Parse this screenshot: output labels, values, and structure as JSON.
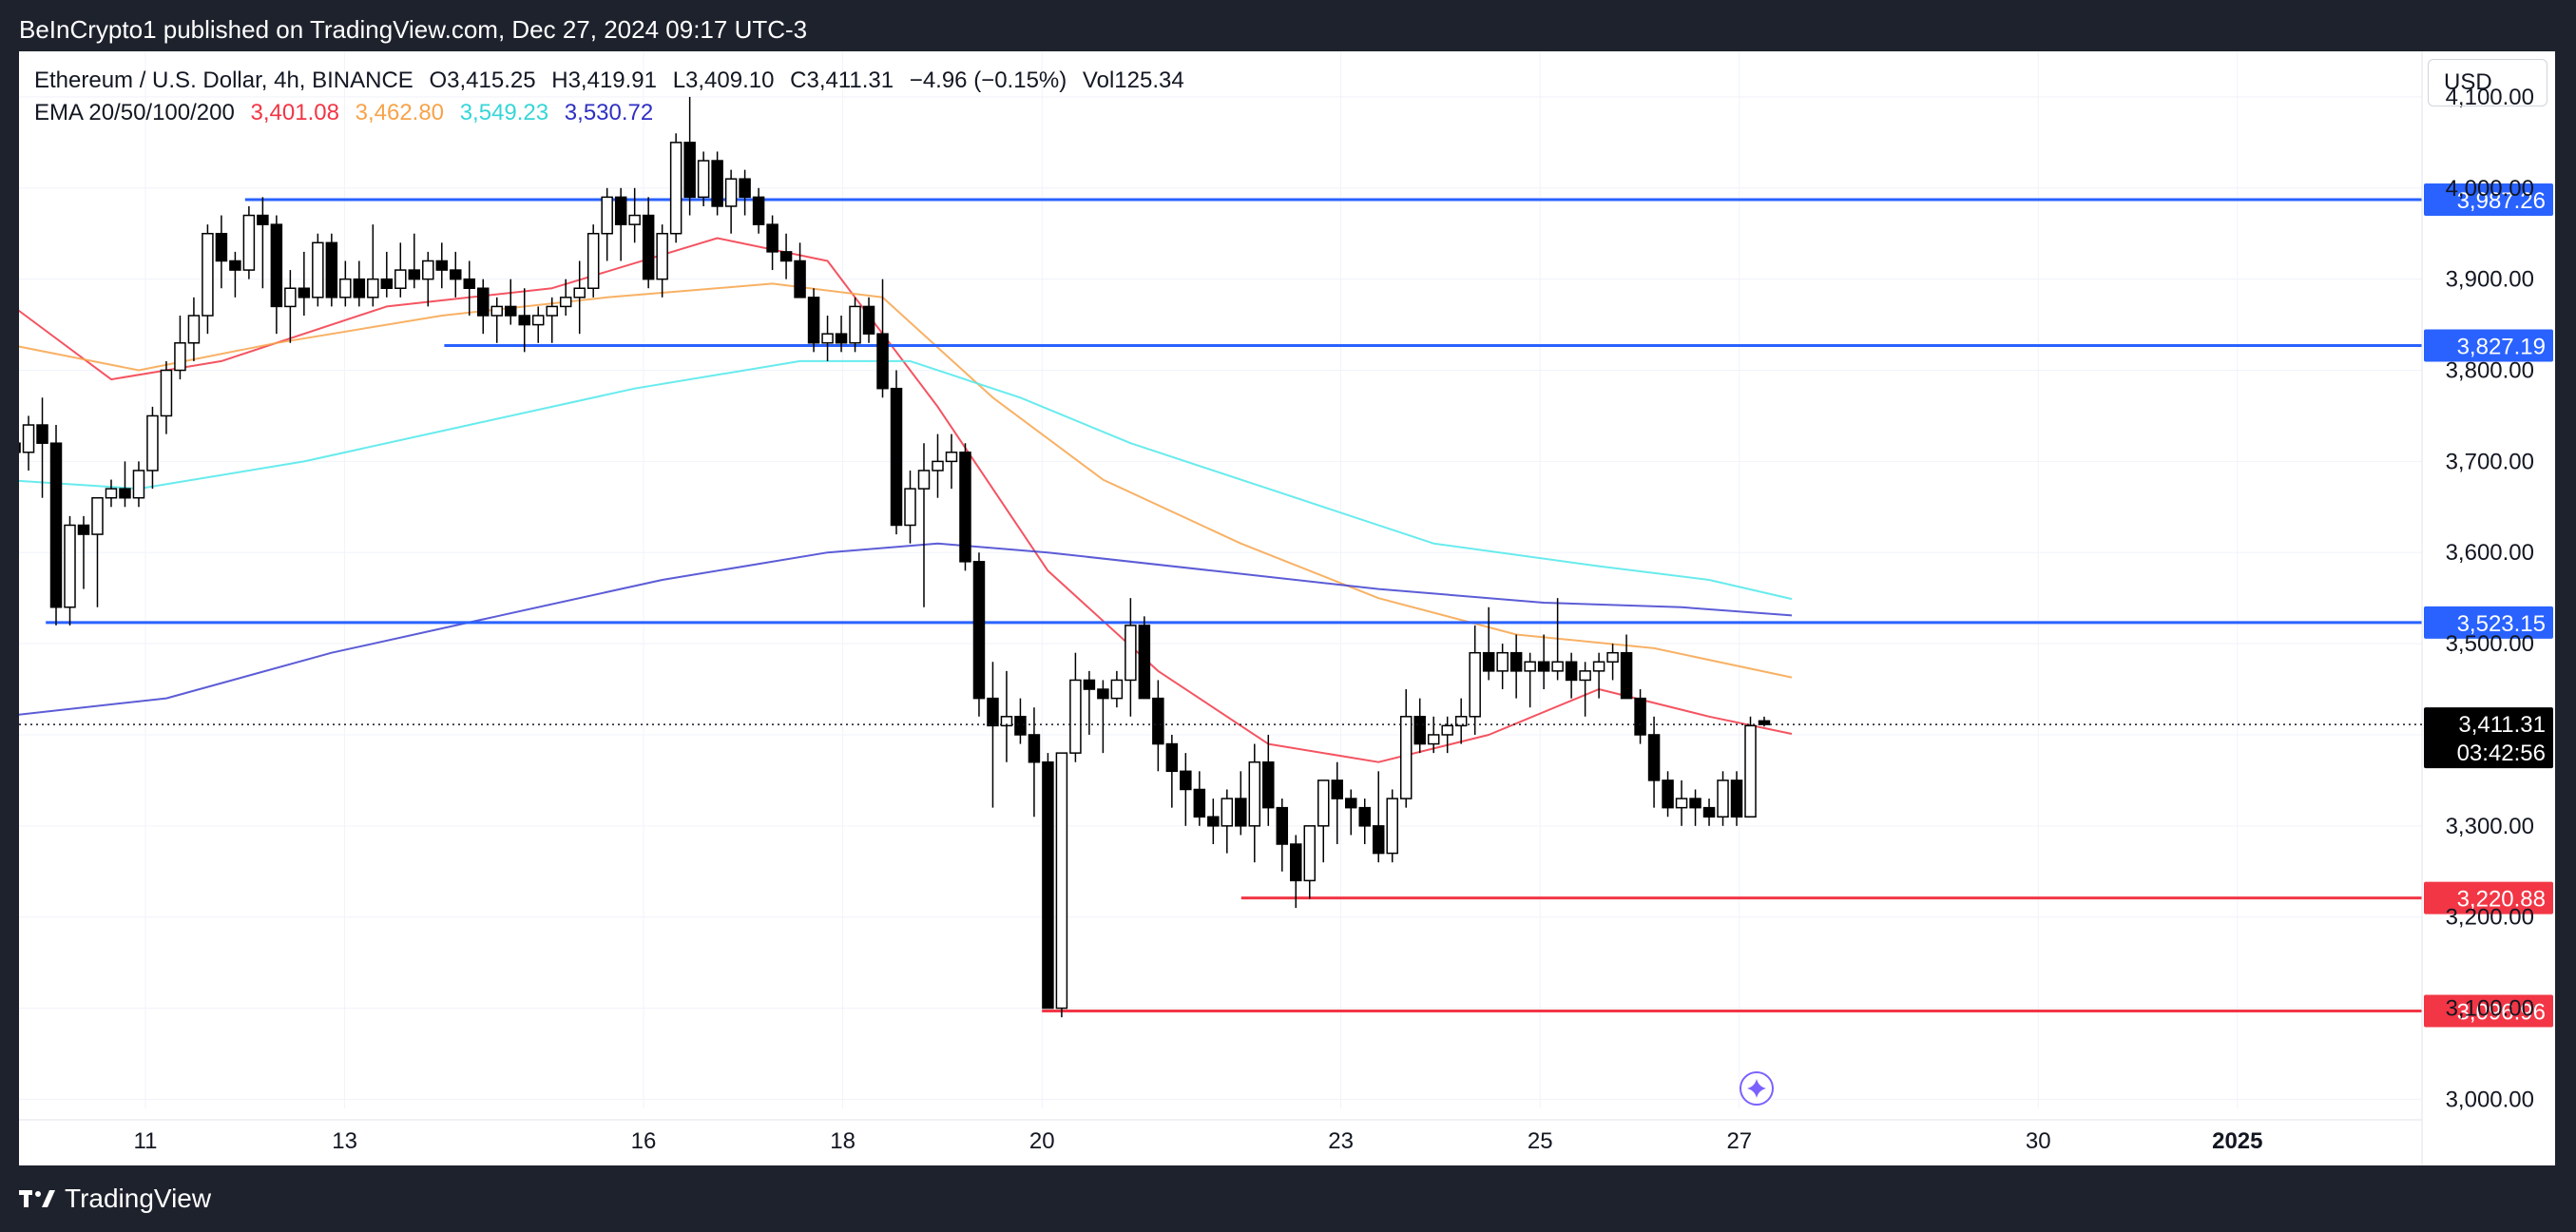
{
  "header": {
    "publisher": "BeInCrypto1 published on TradingView.com, Dec 27, 2024 09:17 UTC-3"
  },
  "footer": {
    "brand": "TradingView"
  },
  "legend": {
    "symbol_line": "Ethereum / U.S. Dollar, 4h, BINANCE",
    "open": "O3,415.25",
    "high": "H3,419.91",
    "low": "L3,409.10",
    "close": "C3,411.31",
    "change": "−4.96 (−0.15%)",
    "volume": "Vol125.34",
    "ema_label": "EMA 20/50/100/200",
    "ema20_value": "3,401.08",
    "ema50_value": "3,462.80",
    "ema100_value": "3,549.23",
    "ema200_value": "3,530.72"
  },
  "currency_button": "USD",
  "price_box": {
    "price": "3,411.31",
    "countdown": "03:42:56"
  },
  "colors": {
    "ema20": "#f23645",
    "ema50": "#f7a34a",
    "ema100": "#4de8ea",
    "ema200": "#3f3fd0",
    "resistance": "#2962ff",
    "support": "#f23645",
    "candle_up": "#ffffff",
    "candle_down": "#000000"
  },
  "chart_data": {
    "type": "candlestick",
    "symbol": "ETHUSD",
    "interval": "4h",
    "y_range": [
      2990,
      4150
    ],
    "x_range_days": [
      "Dec 9",
      "Jan 2"
    ],
    "y_ticks": [
      "3,000.00",
      "3,100.00",
      "3,200.00",
      "3,300.00",
      "3,400.00",
      "3,500.00",
      "3,600.00",
      "3,700.00",
      "3,800.00",
      "3,900.00",
      "4,000.00",
      "4,100.00"
    ],
    "y_tick_values": [
      3000,
      3100,
      3200,
      3300,
      3400,
      3500,
      3600,
      3700,
      3800,
      3900,
      4000,
      4100
    ],
    "x_ticks": [
      {
        "label": "11",
        "date": "2024-12-11"
      },
      {
        "label": "13",
        "date": "2024-12-13"
      },
      {
        "label": "16",
        "date": "2024-12-16"
      },
      {
        "label": "18",
        "date": "2024-12-18"
      },
      {
        "label": "20",
        "date": "2024-12-20"
      },
      {
        "label": "23",
        "date": "2024-12-23"
      },
      {
        "label": "25",
        "date": "2024-12-25"
      },
      {
        "label": "27",
        "date": "2024-12-27"
      },
      {
        "label": "30",
        "date": "2024-12-30"
      },
      {
        "label": "2025",
        "date": "2025-01-01"
      }
    ],
    "levels": [
      {
        "name": "resistance",
        "label": "3,987.26",
        "value": 3987.26,
        "from": "2024-12-12",
        "color": "#2962ff"
      },
      {
        "name": "resistance",
        "label": "3,827.19",
        "value": 3827.19,
        "from": "2024-12-14",
        "color": "#2962ff"
      },
      {
        "name": "resistance",
        "label": "3,523.15",
        "value": 3523.15,
        "from": "2024-12-10",
        "color": "#2962ff"
      },
      {
        "name": "support",
        "label": "3,220.88",
        "value": 3220.88,
        "from": "2024-12-22",
        "color": "#f23645"
      },
      {
        "name": "support",
        "label": "3,096.96",
        "value": 3096.96,
        "from": "2024-12-20",
        "color": "#f23645"
      }
    ],
    "candles": [
      [
        3690,
        3760,
        3640,
        3720
      ],
      [
        3720,
        3740,
        3700,
        3710
      ],
      [
        3710,
        3750,
        3690,
        3740
      ],
      [
        3740,
        3770,
        3660,
        3720
      ],
      [
        3720,
        3740,
        3520,
        3540
      ],
      [
        3540,
        3640,
        3520,
        3630
      ],
      [
        3630,
        3640,
        3560,
        3620
      ],
      [
        3620,
        3660,
        3540,
        3660
      ],
      [
        3660,
        3680,
        3650,
        3670
      ],
      [
        3670,
        3700,
        3650,
        3660
      ],
      [
        3660,
        3700,
        3650,
        3690
      ],
      [
        3690,
        3760,
        3670,
        3750
      ],
      [
        3750,
        3810,
        3730,
        3800
      ],
      [
        3800,
        3860,
        3790,
        3830
      ],
      [
        3830,
        3880,
        3810,
        3860
      ],
      [
        3860,
        3960,
        3840,
        3950
      ],
      [
        3950,
        3970,
        3890,
        3920
      ],
      [
        3920,
        3930,
        3880,
        3910
      ],
      [
        3910,
        3980,
        3900,
        3970
      ],
      [
        3970,
        3990,
        3890,
        3960
      ],
      [
        3960,
        3970,
        3840,
        3870
      ],
      [
        3870,
        3910,
        3830,
        3890
      ],
      [
        3890,
        3930,
        3860,
        3880
      ],
      [
        3880,
        3950,
        3870,
        3940
      ],
      [
        3940,
        3950,
        3870,
        3880
      ],
      [
        3880,
        3920,
        3870,
        3900
      ],
      [
        3900,
        3920,
        3870,
        3880
      ],
      [
        3880,
        3960,
        3870,
        3900
      ],
      [
        3900,
        3930,
        3880,
        3890
      ],
      [
        3890,
        3940,
        3880,
        3910
      ],
      [
        3910,
        3950,
        3890,
        3900
      ],
      [
        3900,
        3930,
        3870,
        3920
      ],
      [
        3920,
        3940,
        3890,
        3910
      ],
      [
        3910,
        3930,
        3880,
        3900
      ],
      [
        3900,
        3920,
        3860,
        3890
      ],
      [
        3890,
        3900,
        3840,
        3860
      ],
      [
        3860,
        3880,
        3830,
        3870
      ],
      [
        3870,
        3900,
        3850,
        3860
      ],
      [
        3860,
        3890,
        3820,
        3850
      ],
      [
        3850,
        3870,
        3830,
        3860
      ],
      [
        3860,
        3880,
        3830,
        3870
      ],
      [
        3870,
        3900,
        3860,
        3880
      ],
      [
        3880,
        3920,
        3840,
        3890
      ],
      [
        3890,
        3960,
        3880,
        3950
      ],
      [
        3950,
        4000,
        3920,
        3990
      ],
      [
        3990,
        4000,
        3920,
        3960
      ],
      [
        3960,
        4000,
        3940,
        3970
      ],
      [
        3970,
        3990,
        3890,
        3900
      ],
      [
        3900,
        3960,
        3880,
        3950
      ],
      [
        3950,
        4060,
        3940,
        4050
      ],
      [
        4050,
        4100,
        3970,
        3990
      ],
      [
        3990,
        4040,
        3980,
        4030
      ],
      [
        4030,
        4040,
        3970,
        3980
      ],
      [
        3980,
        4020,
        3950,
        4010
      ],
      [
        4010,
        4020,
        3970,
        3990
      ],
      [
        3990,
        4000,
        3950,
        3960
      ],
      [
        3960,
        3970,
        3910,
        3930
      ],
      [
        3930,
        3950,
        3900,
        3920
      ],
      [
        3920,
        3940,
        3880,
        3880
      ],
      [
        3880,
        3890,
        3820,
        3830
      ],
      [
        3830,
        3860,
        3810,
        3840
      ],
      [
        3840,
        3860,
        3820,
        3830
      ],
      [
        3830,
        3880,
        3820,
        3870
      ],
      [
        3870,
        3880,
        3830,
        3840
      ],
      [
        3840,
        3900,
        3770,
        3780
      ],
      [
        3780,
        3800,
        3620,
        3630
      ],
      [
        3630,
        3690,
        3610,
        3670
      ],
      [
        3670,
        3720,
        3540,
        3690
      ],
      [
        3690,
        3730,
        3660,
        3700
      ],
      [
        3700,
        3730,
        3670,
        3710
      ],
      [
        3710,
        3720,
        3580,
        3590
      ],
      [
        3590,
        3600,
        3420,
        3440
      ],
      [
        3440,
        3480,
        3320,
        3410
      ],
      [
        3410,
        3470,
        3370,
        3420
      ],
      [
        3420,
        3440,
        3390,
        3400
      ],
      [
        3400,
        3430,
        3310,
        3370
      ],
      [
        3370,
        3380,
        3100,
        3100
      ],
      [
        3100,
        3380,
        3090,
        3380
      ],
      [
        3380,
        3490,
        3370,
        3460
      ],
      [
        3460,
        3470,
        3400,
        3450
      ],
      [
        3450,
        3460,
        3380,
        3440
      ],
      [
        3440,
        3470,
        3430,
        3460
      ],
      [
        3460,
        3550,
        3420,
        3520
      ],
      [
        3520,
        3530,
        3440,
        3440
      ],
      [
        3440,
        3460,
        3360,
        3390
      ],
      [
        3390,
        3400,
        3320,
        3360
      ],
      [
        3360,
        3380,
        3300,
        3340
      ],
      [
        3340,
        3360,
        3300,
        3310
      ],
      [
        3310,
        3330,
        3280,
        3300
      ],
      [
        3300,
        3340,
        3270,
        3330
      ],
      [
        3330,
        3360,
        3290,
        3300
      ],
      [
        3300,
        3390,
        3260,
        3370
      ],
      [
        3370,
        3400,
        3300,
        3320
      ],
      [
        3320,
        3330,
        3250,
        3280
      ],
      [
        3280,
        3290,
        3210,
        3240
      ],
      [
        3240,
        3300,
        3220,
        3300
      ],
      [
        3300,
        3340,
        3260,
        3350
      ],
      [
        3350,
        3370,
        3280,
        3330
      ],
      [
        3330,
        3340,
        3290,
        3320
      ],
      [
        3320,
        3330,
        3280,
        3300
      ],
      [
        3300,
        3360,
        3260,
        3270
      ],
      [
        3270,
        3340,
        3260,
        3330
      ],
      [
        3330,
        3450,
        3320,
        3420
      ],
      [
        3420,
        3440,
        3380,
        3390
      ],
      [
        3390,
        3420,
        3380,
        3400
      ],
      [
        3400,
        3420,
        3380,
        3410
      ],
      [
        3410,
        3440,
        3390,
        3420
      ],
      [
        3420,
        3520,
        3400,
        3490
      ],
      [
        3490,
        3540,
        3460,
        3470
      ],
      [
        3470,
        3500,
        3450,
        3490
      ],
      [
        3490,
        3510,
        3440,
        3470
      ],
      [
        3470,
        3490,
        3430,
        3480
      ],
      [
        3480,
        3510,
        3450,
        3470
      ],
      [
        3470,
        3550,
        3460,
        3480
      ],
      [
        3480,
        3490,
        3440,
        3460
      ],
      [
        3460,
        3480,
        3420,
        3470
      ],
      [
        3470,
        3490,
        3440,
        3480
      ],
      [
        3480,
        3500,
        3460,
        3490
      ],
      [
        3490,
        3510,
        3440,
        3440
      ],
      [
        3440,
        3450,
        3390,
        3400
      ],
      [
        3400,
        3420,
        3320,
        3350
      ],
      [
        3350,
        3360,
        3310,
        3320
      ],
      [
        3320,
        3350,
        3300,
        3330
      ],
      [
        3330,
        3340,
        3300,
        3320
      ],
      [
        3320,
        3330,
        3300,
        3310
      ],
      [
        3310,
        3360,
        3300,
        3350
      ],
      [
        3350,
        3360,
        3300,
        3310
      ],
      [
        3310,
        3420,
        3310,
        3410
      ],
      [
        3415.25,
        3419.91,
        3409.1,
        3411.31
      ]
    ],
    "ema_series": [
      {
        "name": "EMA 20",
        "value": 3401.08,
        "points": [
          [
            0,
            3880
          ],
          [
            8,
            3790
          ],
          [
            16,
            3810
          ],
          [
            28,
            3870
          ],
          [
            40,
            3890
          ],
          [
            52,
            3945
          ],
          [
            60,
            3920
          ],
          [
            68,
            3760
          ],
          [
            76,
            3580
          ],
          [
            84,
            3470
          ],
          [
            92,
            3390
          ],
          [
            100,
            3370
          ],
          [
            108,
            3400
          ],
          [
            116,
            3450
          ],
          [
            124,
            3420
          ],
          [
            130,
            3401
          ]
        ]
      },
      {
        "name": "EMA 50",
        "value": 3462.8,
        "points": [
          [
            0,
            3830
          ],
          [
            10,
            3800
          ],
          [
            20,
            3830
          ],
          [
            32,
            3860
          ],
          [
            44,
            3880
          ],
          [
            56,
            3895
          ],
          [
            64,
            3880
          ],
          [
            72,
            3770
          ],
          [
            80,
            3680
          ],
          [
            90,
            3610
          ],
          [
            100,
            3550
          ],
          [
            110,
            3510
          ],
          [
            120,
            3495
          ],
          [
            130,
            3463
          ]
        ]
      },
      {
        "name": "EMA 100",
        "value": 3549.23,
        "points": [
          [
            0,
            3680
          ],
          [
            10,
            3670
          ],
          [
            22,
            3700
          ],
          [
            34,
            3740
          ],
          [
            46,
            3780
          ],
          [
            58,
            3810
          ],
          [
            66,
            3810
          ],
          [
            74,
            3770
          ],
          [
            82,
            3720
          ],
          [
            92,
            3670
          ],
          [
            104,
            3610
          ],
          [
            116,
            3585
          ],
          [
            124,
            3570
          ],
          [
            130,
            3549
          ]
        ]
      },
      {
        "name": "EMA 200",
        "value": 3530.72,
        "points": [
          [
            0,
            3420
          ],
          [
            12,
            3440
          ],
          [
            24,
            3490
          ],
          [
            36,
            3530
          ],
          [
            48,
            3570
          ],
          [
            60,
            3600
          ],
          [
            68,
            3610
          ],
          [
            76,
            3600
          ],
          [
            88,
            3580
          ],
          [
            100,
            3560
          ],
          [
            112,
            3545
          ],
          [
            122,
            3540
          ],
          [
            130,
            3531
          ]
        ]
      }
    ],
    "current_price": 3411.31
  }
}
